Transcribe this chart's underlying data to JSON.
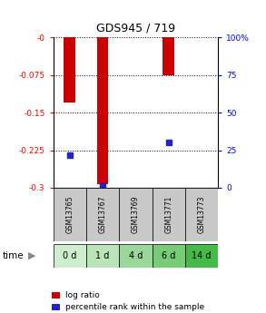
{
  "title": "GDS945 / 719",
  "categories": [
    "GSM13765",
    "GSM13767",
    "GSM13769",
    "GSM13771",
    "GSM13773"
  ],
  "time_labels": [
    "0 d",
    "1 d",
    "4 d",
    "6 d",
    "14 d"
  ],
  "log_ratios": [
    -0.13,
    -0.293,
    0.0,
    -0.075,
    0.0
  ],
  "percentile_ranks": [
    22.0,
    1.0,
    -1.0,
    30.0,
    -1.0
  ],
  "ylim_left": [
    -0.3,
    0.0
  ],
  "ylim_right": [
    0,
    100
  ],
  "yticks_left": [
    0.0,
    -0.075,
    -0.15,
    -0.225,
    -0.3
  ],
  "yticks_right": [
    100,
    75,
    50,
    25,
    0
  ],
  "ytick_labels_left": [
    "-0",
    "-0.075",
    "-0.15",
    "-0.225",
    "-0.3"
  ],
  "ytick_labels_right": [
    "100%",
    "75",
    "50",
    "25",
    "0"
  ],
  "bar_color": "#CC0000",
  "dot_color": "#2222CC",
  "label_bg_color": "#c8c8c8",
  "time_colors": [
    "#cceecc",
    "#b8e4b8",
    "#99d899",
    "#77cc77",
    "#44bb44"
  ],
  "bar_width": 0.35,
  "legend_log": "log ratio",
  "legend_pct": "percentile rank within the sample"
}
